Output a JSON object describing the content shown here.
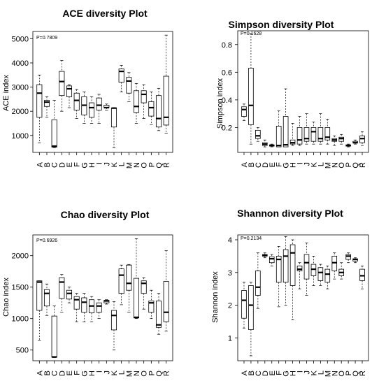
{
  "chart_data": [
    {
      "type": "boxplot",
      "title": "ACE diversity Plot",
      "ylabel": "ACE index",
      "annotation": "P=0.7809",
      "categories": [
        "A",
        "B",
        "C",
        "D",
        "E",
        "F",
        "G",
        "H",
        "I",
        "J",
        "K",
        "L",
        "M",
        "N",
        "O",
        "P",
        "Q",
        "R"
      ],
      "ylim": [
        300,
        5300
      ],
      "yticks": [
        1000,
        2000,
        3000,
        4000,
        5000
      ],
      "boxes": [
        {
          "min": 700,
          "q1": 1750,
          "median": 2750,
          "q3": 3100,
          "max": 3500
        },
        {
          "min": 1750,
          "q1": 2200,
          "median": 2380,
          "q3": 2450,
          "max": 2600
        },
        {
          "min": 500,
          "q1": 520,
          "median": 560,
          "q3": 1650,
          "max": 2450
        },
        {
          "min": 2000,
          "q1": 2650,
          "median": 3230,
          "q3": 3650,
          "max": 4100
        },
        {
          "min": 2150,
          "q1": 2600,
          "median": 2930,
          "q3": 3050,
          "max": 3100
        },
        {
          "min": 1700,
          "q1": 2050,
          "median": 2450,
          "q3": 2750,
          "max": 2900
        },
        {
          "min": 1500,
          "q1": 1850,
          "median": 2250,
          "q3": 2600,
          "max": 2800
        },
        {
          "min": 1500,
          "q1": 1750,
          "median": 2150,
          "q3": 2350,
          "max": 2600
        },
        {
          "min": 1500,
          "q1": 2050,
          "median": 2250,
          "q3": 2550,
          "max": 2700
        },
        {
          "min": 2050,
          "q1": 2150,
          "median": 2150,
          "q3": 2250,
          "max": 2300
        },
        {
          "min": 500,
          "q1": 1350,
          "median": 2130,
          "q3": 2130,
          "max": 2150
        },
        {
          "min": 2800,
          "q1": 3200,
          "median": 3650,
          "q3": 3750,
          "max": 3900
        },
        {
          "min": 2400,
          "q1": 2750,
          "median": 3250,
          "q3": 3400,
          "max": 3600
        },
        {
          "min": 1500,
          "q1": 1950,
          "median": 2200,
          "q3": 2850,
          "max": 3150
        },
        {
          "min": 1700,
          "q1": 2350,
          "median": 2700,
          "q3": 2850,
          "max": 3100
        },
        {
          "min": 1450,
          "q1": 1800,
          "median": 2150,
          "q3": 2400,
          "max": 2800
        },
        {
          "min": 1200,
          "q1": 1350,
          "median": 1700,
          "q3": 2650,
          "max": 2950
        },
        {
          "min": 1100,
          "q1": 1430,
          "median": 1750,
          "q3": 3450,
          "max": 5150
        }
      ]
    },
    {
      "type": "boxplot",
      "title": "Simpson diversity Plot",
      "ylabel": "Simpson index",
      "annotation": "P=0.1628",
      "categories": [
        "A",
        "B",
        "C",
        "D",
        "E",
        "F",
        "G",
        "H",
        "I",
        "J",
        "K",
        "L",
        "M",
        "N",
        "O",
        "P",
        "Q",
        "R"
      ],
      "ylim": [
        0.02,
        0.9
      ],
      "yticks": [
        0.2,
        0.4,
        0.6,
        0.8
      ],
      "boxes": [
        {
          "min": 0.25,
          "q1": 0.28,
          "median": 0.33,
          "q3": 0.35,
          "max": 0.37
        },
        {
          "min": 0.08,
          "q1": 0.22,
          "median": 0.36,
          "q3": 0.63,
          "max": 0.88
        },
        {
          "min": 0.1,
          "q1": 0.12,
          "median": 0.14,
          "q3": 0.18,
          "max": 0.2
        },
        {
          "min": 0.06,
          "q1": 0.07,
          "median": 0.08,
          "q3": 0.09,
          "max": 0.11
        },
        {
          "min": 0.06,
          "q1": 0.065,
          "median": 0.07,
          "q3": 0.075,
          "max": 0.08
        },
        {
          "min": 0.06,
          "q1": 0.06,
          "median": 0.07,
          "q3": 0.21,
          "max": 0.32
        },
        {
          "min": 0.06,
          "q1": 0.06,
          "median": 0.075,
          "q3": 0.28,
          "max": 0.48
        },
        {
          "min": 0.07,
          "q1": 0.08,
          "median": 0.09,
          "q3": 0.11,
          "max": 0.23
        },
        {
          "min": 0.07,
          "q1": 0.08,
          "median": 0.11,
          "q3": 0.2,
          "max": 0.28
        },
        {
          "min": 0.08,
          "q1": 0.1,
          "median": 0.12,
          "q3": 0.2,
          "max": 0.3
        },
        {
          "min": 0.08,
          "q1": 0.1,
          "median": 0.17,
          "q3": 0.2,
          "max": 0.24
        },
        {
          "min": 0.08,
          "q1": 0.1,
          "median": 0.12,
          "q3": 0.2,
          "max": 0.3
        },
        {
          "min": 0.08,
          "q1": 0.11,
          "median": 0.13,
          "q3": 0.2,
          "max": 0.26
        },
        {
          "min": 0.07,
          "q1": 0.1,
          "median": 0.11,
          "q3": 0.12,
          "max": 0.14
        },
        {
          "min": 0.08,
          "q1": 0.1,
          "median": 0.12,
          "q3": 0.13,
          "max": 0.15
        },
        {
          "min": 0.06,
          "q1": 0.065,
          "median": 0.07,
          "q3": 0.075,
          "max": 0.08
        },
        {
          "min": 0.08,
          "q1": 0.09,
          "median": 0.09,
          "q3": 0.1,
          "max": 0.11
        },
        {
          "min": 0.07,
          "q1": 0.09,
          "median": 0.12,
          "q3": 0.14,
          "max": 0.17
        }
      ]
    },
    {
      "type": "boxplot",
      "title": "Chao diversity Plot",
      "ylabel": "Chao index",
      "annotation": "P=0.6926",
      "categories": [
        "A",
        "B",
        "C",
        "D",
        "E",
        "F",
        "G",
        "H",
        "I",
        "J",
        "K",
        "L",
        "M",
        "N",
        "O",
        "P",
        "Q",
        "R"
      ],
      "ylim": [
        330,
        2330
      ],
      "yticks": [
        500,
        1000,
        1500,
        2000
      ],
      "boxes": [
        {
          "min": 650,
          "q1": 1130,
          "median": 1580,
          "q3": 1600,
          "max": 1600
        },
        {
          "min": 1050,
          "q1": 1200,
          "median": 1400,
          "q3": 1460,
          "max": 1550
        },
        {
          "min": 380,
          "q1": 385,
          "median": 390,
          "q3": 1040,
          "max": 1200
        },
        {
          "min": 1100,
          "q1": 1320,
          "median": 1580,
          "q3": 1650,
          "max": 1700
        },
        {
          "min": 1250,
          "q1": 1310,
          "median": 1400,
          "q3": 1450,
          "max": 1500
        },
        {
          "min": 950,
          "q1": 1150,
          "median": 1300,
          "q3": 1350,
          "max": 1400
        },
        {
          "min": 950,
          "q1": 1100,
          "median": 1260,
          "q3": 1330,
          "max": 1400
        },
        {
          "min": 950,
          "q1": 1090,
          "median": 1200,
          "q3": 1300,
          "max": 1350
        },
        {
          "min": 1000,
          "q1": 1100,
          "median": 1200,
          "q3": 1250,
          "max": 1300
        },
        {
          "min": 1230,
          "q1": 1250,
          "median": 1280,
          "q3": 1290,
          "max": 1300
        },
        {
          "min": 500,
          "q1": 820,
          "median": 1050,
          "q3": 1130,
          "max": 1270
        },
        {
          "min": 1220,
          "q1": 1400,
          "median": 1690,
          "q3": 1790,
          "max": 1850
        },
        {
          "min": 1100,
          "q1": 1450,
          "median": 1560,
          "q3": 1850,
          "max": 1860
        },
        {
          "min": 1000,
          "q1": 1010,
          "median": 1020,
          "q3": 1640,
          "max": 2270
        },
        {
          "min": 1150,
          "q1": 1400,
          "median": 1560,
          "q3": 1600,
          "max": 1650
        },
        {
          "min": 1000,
          "q1": 1100,
          "median": 1250,
          "q3": 1280,
          "max": 1450
        },
        {
          "min": 750,
          "q1": 860,
          "median": 900,
          "q3": 1280,
          "max": 1400
        },
        {
          "min": 800,
          "q1": 950,
          "median": 1100,
          "q3": 1590,
          "max": 2080
        }
      ]
    },
    {
      "type": "boxplot",
      "title": "Shannon diversity Plot",
      "ylabel": "Shannon index",
      "annotation": "P=0.2134",
      "categories": [
        "A",
        "B",
        "C",
        "D",
        "E",
        "F",
        "G",
        "H",
        "I",
        "J",
        "K",
        "L",
        "M",
        "N",
        "O",
        "P",
        "Q",
        "R"
      ],
      "ylim": [
        0.3,
        4.15
      ],
      "yticks": [
        1,
        2,
        3,
        4
      ],
      "boxes": [
        {
          "min": 1.3,
          "q1": 1.6,
          "median": 2.15,
          "q3": 2.45,
          "max": 2.7
        },
        {
          "min": 0.45,
          "q1": 1.25,
          "median": 2.0,
          "q3": 2.6,
          "max": 2.7
        },
        {
          "min": 1.9,
          "q1": 2.3,
          "median": 2.55,
          "q3": 3.05,
          "max": 3.6
        },
        {
          "min": 3.45,
          "q1": 3.5,
          "median": 3.52,
          "q3": 3.55,
          "max": 3.6
        },
        {
          "min": 3.2,
          "q1": 3.3,
          "median": 3.42,
          "q3": 3.48,
          "max": 3.55
        },
        {
          "min": 1.95,
          "q1": 2.7,
          "median": 3.4,
          "q3": 3.5,
          "max": 3.8
        },
        {
          "min": 2.0,
          "q1": 2.7,
          "median": 3.5,
          "q3": 3.7,
          "max": 4.1
        },
        {
          "min": 1.55,
          "q1": 2.6,
          "median": 3.6,
          "q3": 3.85,
          "max": 4.0
        },
        {
          "min": 2.5,
          "q1": 3.05,
          "median": 3.1,
          "q3": 3.2,
          "max": 3.3
        },
        {
          "min": 2.3,
          "q1": 2.8,
          "median": 3.3,
          "q3": 3.55,
          "max": 3.9
        },
        {
          "min": 2.6,
          "q1": 2.9,
          "median": 3.1,
          "q3": 3.25,
          "max": 3.5
        },
        {
          "min": 2.6,
          "q1": 2.75,
          "median": 3.0,
          "q3": 3.15,
          "max": 3.25
        },
        {
          "min": 2.5,
          "q1": 2.7,
          "median": 2.95,
          "q3": 3.1,
          "max": 3.2
        },
        {
          "min": 2.8,
          "q1": 3.05,
          "median": 3.3,
          "q3": 3.5,
          "max": 3.6
        },
        {
          "min": 2.8,
          "q1": 2.9,
          "median": 3.0,
          "q3": 3.1,
          "max": 3.3
        },
        {
          "min": 3.3,
          "q1": 3.4,
          "median": 3.5,
          "q3": 3.55,
          "max": 3.6
        },
        {
          "min": 3.3,
          "q1": 3.35,
          "median": 3.4,
          "q3": 3.42,
          "max": 3.45
        },
        {
          "min": 2.5,
          "q1": 2.75,
          "median": 2.9,
          "q3": 3.1,
          "max": 3.2
        }
      ]
    }
  ]
}
